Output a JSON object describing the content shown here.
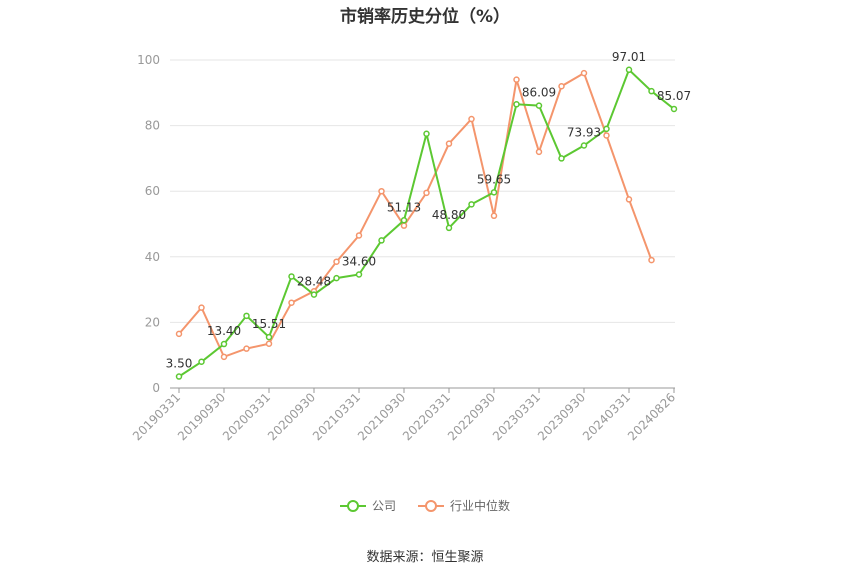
{
  "chart_data": {
    "type": "line",
    "title": "市销率历史分位（%）",
    "ylim": [
      0,
      100
    ],
    "yticks": [
      0,
      20,
      40,
      60,
      80,
      100
    ],
    "xticks": [
      "20190331",
      "20190930",
      "20200331",
      "20200930",
      "20210331",
      "20210930",
      "20220331",
      "20220930",
      "20230331",
      "20230930",
      "20240331",
      "20240826"
    ],
    "grid": true,
    "legend_position": "bottom",
    "series": [
      {
        "name": "公司",
        "color": "#5cc832",
        "values": [
          3.5,
          8.0,
          13.4,
          22.0,
          15.51,
          34.0,
          28.48,
          33.5,
          34.6,
          45.0,
          51.13,
          77.5,
          48.8,
          56.0,
          59.65,
          86.5,
          86.09,
          70.0,
          73.93,
          79.0,
          97.01,
          90.5,
          85.07
        ],
        "labels": [
          "3.50",
          "",
          "13.40",
          "",
          "15.51",
          "",
          "28.48",
          "",
          "34.60",
          "",
          "51.13",
          "",
          "48.80",
          "",
          "59.65",
          "",
          "86.09",
          "",
          "73.93",
          "",
          "97.01",
          "",
          "85.07"
        ]
      },
      {
        "name": "行业中位数",
        "color": "#f4956c",
        "values": [
          16.5,
          24.5,
          9.5,
          12.0,
          13.5,
          26.0,
          29.5,
          38.5,
          46.5,
          60.0,
          49.5,
          59.5,
          74.5,
          82.0,
          52.5,
          94.0,
          72.0,
          92.0,
          96.0,
          77.0,
          57.5,
          39.0
        ]
      }
    ]
  },
  "footer": {
    "source": "数据来源：恒生聚源"
  }
}
